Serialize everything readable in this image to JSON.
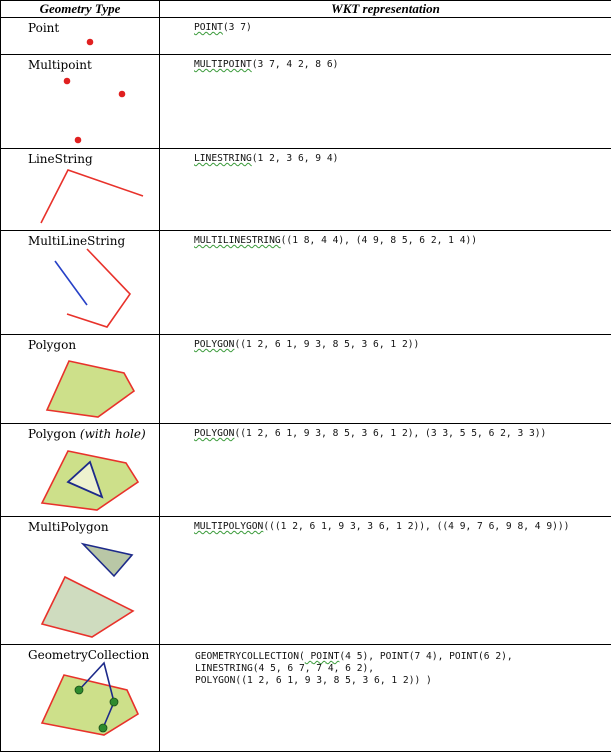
{
  "header": {
    "col1": "Geometry Type",
    "col2": "WKT representation"
  },
  "rows": [
    {
      "type": "Point",
      "wkt_kw": "POINT",
      "wkt_rest": "(3 7)"
    },
    {
      "type": "Multipoint",
      "wkt_kw": "MULTIPOINT",
      "wkt_rest": "(3 7, 4 2, 8 6)"
    },
    {
      "type": "LineString",
      "wkt_kw": "LINESTRING",
      "wkt_rest": "(1 2, 3 6, 9 4)"
    },
    {
      "type": "MultiLineString",
      "wkt_kw": "MULTILINESTRING",
      "wkt_rest": "((1 8, 4 4), (4 9, 8 5, 6 2, 1 4))"
    },
    {
      "type": "Polygon",
      "wkt_kw": "POLYGON",
      "wkt_rest": "((1 2, 6 1, 9 3, 8 5, 3 6, 1 2))"
    },
    {
      "type": "Polygon",
      "type_note": "(with hole)",
      "wkt_kw": "POLYGON",
      "wkt_rest": "((1 2, 6 1, 9 3, 8 5, 3 6, 1 2), (3 3, 5 5, 6 2, 3 3))"
    },
    {
      "type": "MultiPolygon",
      "wkt_kw": "MULTIPOLYGON",
      "wkt_rest": "(((1 2, 6 1, 9 3, 3 6, 1 2)), ((4 9, 7 6, 9 8, 4 9)))"
    },
    {
      "type": "GeometryCollection",
      "wkt_line1_pre": "GEOMETRYCOLLECTION(",
      "wkt_line1_kw": " POINT",
      "wkt_line1_rest": "(4 5), POINT(7 4), POINT(6 2),",
      "wkt_line2": "LINESTRING(4 5, 6 7, 7 4, 6 2),",
      "wkt_line3": "POLYGON((1 2, 6 1, 9 3, 8 5, 3 6, 1 2)) )"
    }
  ],
  "colors": {
    "outline": "#e8322b",
    "fill": "#cde08a",
    "hole_stroke": "#1d2a8a",
    "multipolygon_triangle_fill": "#b9c7a6",
    "multipolygon_quad_fill": "#cfdcbf",
    "line_blue": "#2741c7",
    "point_red": "#e02020",
    "point_green": "#2e8b2e",
    "gc_line": "#1d2a8a"
  }
}
